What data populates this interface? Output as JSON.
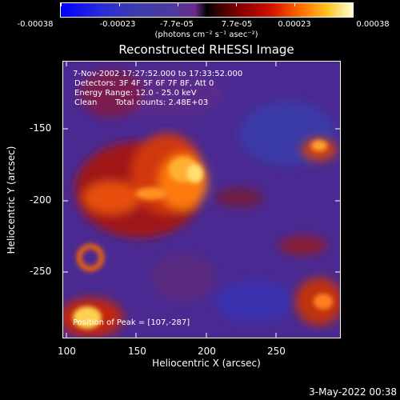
{
  "colorbar": {
    "labels": [
      "-0.00038",
      "-0.00023",
      "-7.7e-05",
      "7.7e-05",
      "0.00023",
      "0.00038"
    ],
    "units": "(photons cm⁻² s⁻¹ asec⁻²)"
  },
  "plot": {
    "title": "Reconstructed RHESSI Image",
    "time_range": "7-Nov-2002 17:27:52.000 to 17:33:52.000",
    "detectors": "Detectors: 3F 4F 5F 6F 7F 8F, Att 0",
    "energy": "Energy Range: 12.0 - 25.0 keV",
    "clean_label": "Clean",
    "total_counts": "Total counts: 2.48E+03",
    "peak": "Position of Peak = [107,-287]",
    "xlabel": "Heliocentric X (arcsec)",
    "ylabel": "Heliocentric Y (arcsec)",
    "xticks": [
      "100",
      "150",
      "200",
      "250"
    ],
    "yticks": [
      "-150",
      "-200",
      "-250"
    ]
  },
  "footer": {
    "timestamp": "3-May-2022 00:38"
  }
}
